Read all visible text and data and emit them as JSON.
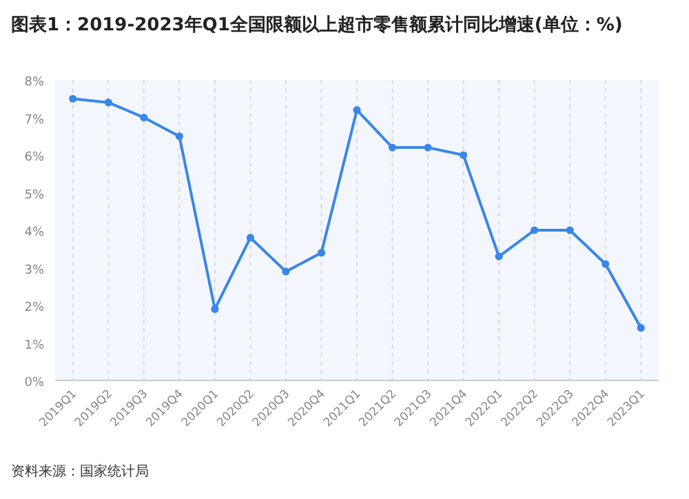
{
  "chart_data": {
    "type": "line",
    "title": "图表1：2019-2023年Q1全国限额以上超市零售额累计同比增速(单位：%)",
    "categories": [
      "2019Q1",
      "2019Q2",
      "2019Q3",
      "2019Q4",
      "2020Q1",
      "2020Q2",
      "2020Q3",
      "2020Q4",
      "2021Q1",
      "2021Q2",
      "2021Q3",
      "2021Q4",
      "2022Q1",
      "2022Q2",
      "2022Q3",
      "2022Q4",
      "2023Q1"
    ],
    "series": [
      {
        "color": "#3a86e8",
        "values": [
          7.5,
          7.4,
          7.0,
          6.5,
          1.9,
          3.8,
          2.9,
          3.4,
          7.2,
          6.2,
          6.2,
          6.0,
          3.3,
          4.0,
          4.0,
          3.1,
          1.4
        ]
      }
    ],
    "ylim": [
      0,
      8
    ],
    "yticks": [
      {
        "value": 0,
        "label": "0%"
      },
      {
        "value": 1,
        "label": "1%"
      },
      {
        "value": 2,
        "label": "2%"
      },
      {
        "value": 3,
        "label": "3%"
      },
      {
        "value": 4,
        "label": "4%"
      },
      {
        "value": 5,
        "label": "5%"
      },
      {
        "value": 6,
        "label": "6%"
      },
      {
        "value": 7,
        "label": "7%"
      },
      {
        "value": 8,
        "label": "8%"
      }
    ],
    "grid": "x",
    "marker": "circle",
    "annotations": [
      "资料来源：国家统计局"
    ]
  }
}
